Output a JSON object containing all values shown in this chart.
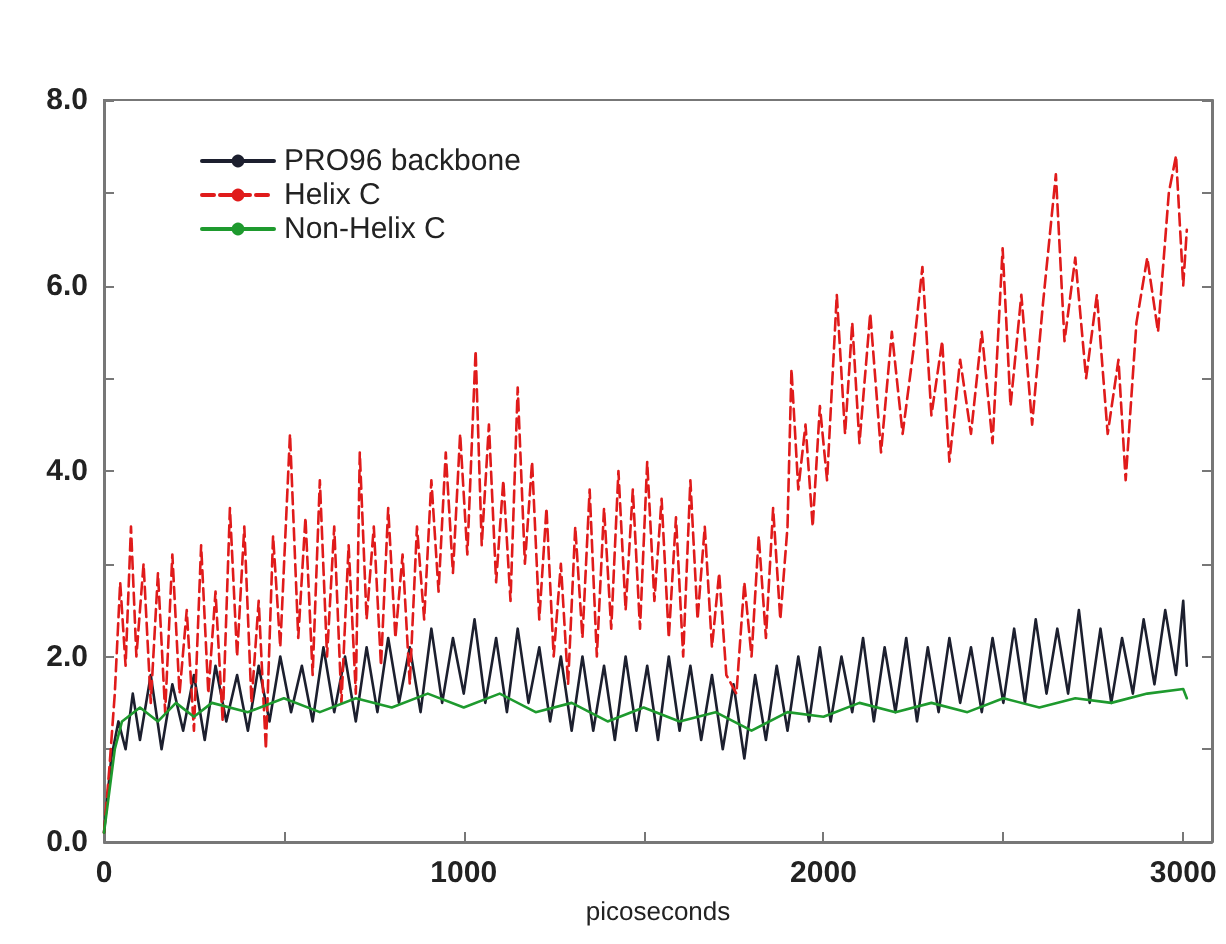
{
  "chart_data": {
    "type": "line",
    "xlabel": "picoseconds",
    "xlim": [
      0,
      3080
    ],
    "ylim": [
      0,
      8
    ],
    "xticks": [
      0,
      {
        "value": 500,
        "label": null
      },
      1000,
      {
        "value": 1500,
        "label": null
      },
      2000,
      {
        "value": 2500,
        "label": null
      },
      3000
    ],
    "yticks": [
      {
        "value": 0,
        "label": "0.0"
      },
      {
        "value": 1,
        "label": null
      },
      {
        "value": 2,
        "label": "2.0"
      },
      {
        "value": 3,
        "label": null
      },
      {
        "value": 4,
        "label": "4.0"
      },
      {
        "value": 5,
        "label": null
      },
      {
        "value": 6,
        "label": "6.0"
      },
      {
        "value": 7,
        "label": null
      },
      {
        "value": 8,
        "label": "8.0"
      }
    ],
    "grid": false,
    "legend": "top left",
    "marker": "none",
    "series": [
      {
        "name": "PRO96 backbone",
        "color": "#1c1f2e",
        "line_style": "solid",
        "x": [
          0,
          20,
          40,
          60,
          80,
          100,
          130,
          160,
          190,
          220,
          250,
          280,
          310,
          340,
          370,
          400,
          430,
          460,
          490,
          520,
          550,
          580,
          610,
          640,
          670,
          700,
          730,
          760,
          790,
          820,
          850,
          880,
          910,
          940,
          970,
          1000,
          1030,
          1060,
          1090,
          1120,
          1150,
          1180,
          1210,
          1240,
          1270,
          1300,
          1330,
          1360,
          1390,
          1420,
          1450,
          1480,
          1510,
          1540,
          1570,
          1600,
          1630,
          1660,
          1690,
          1720,
          1750,
          1780,
          1810,
          1840,
          1870,
          1900,
          1930,
          1960,
          1990,
          2020,
          2050,
          2080,
          2110,
          2140,
          2170,
          2200,
          2230,
          2260,
          2290,
          2320,
          2350,
          2380,
          2410,
          2440,
          2470,
          2500,
          2530,
          2560,
          2590,
          2620,
          2650,
          2680,
          2710,
          2740,
          2770,
          2800,
          2830,
          2860,
          2890,
          2920,
          2950,
          2980,
          3000,
          3010
        ],
        "values": [
          0.1,
          0.9,
          1.3,
          1.0,
          1.6,
          1.1,
          1.8,
          1.0,
          1.7,
          1.2,
          1.8,
          1.1,
          1.9,
          1.3,
          1.8,
          1.2,
          1.9,
          1.3,
          2.0,
          1.4,
          1.9,
          1.3,
          2.1,
          1.4,
          2.0,
          1.3,
          2.1,
          1.4,
          2.2,
          1.5,
          2.1,
          1.4,
          2.3,
          1.5,
          2.2,
          1.6,
          2.4,
          1.5,
          2.2,
          1.4,
          2.3,
          1.5,
          2.1,
          1.3,
          2.0,
          1.2,
          2.0,
          1.2,
          1.9,
          1.1,
          2.0,
          1.2,
          1.9,
          1.1,
          2.0,
          1.2,
          1.9,
          1.1,
          1.8,
          1.0,
          1.7,
          0.9,
          1.8,
          1.1,
          1.9,
          1.2,
          2.0,
          1.3,
          2.1,
          1.3,
          2.0,
          1.4,
          2.2,
          1.3,
          2.1,
          1.4,
          2.2,
          1.3,
          2.1,
          1.4,
          2.2,
          1.5,
          2.1,
          1.4,
          2.2,
          1.5,
          2.3,
          1.5,
          2.4,
          1.6,
          2.3,
          1.6,
          2.5,
          1.5,
          2.3,
          1.5,
          2.2,
          1.6,
          2.4,
          1.7,
          2.5,
          1.8,
          2.6,
          1.9
        ]
      },
      {
        "name": "Helix C",
        "color": "#e01b1b",
        "line_style": "dashed",
        "x": [
          0,
          15,
          30,
          45,
          60,
          75,
          90,
          110,
          130,
          150,
          170,
          190,
          210,
          230,
          250,
          270,
          290,
          310,
          330,
          350,
          370,
          390,
          410,
          430,
          450,
          470,
          490,
          517,
          540,
          560,
          580,
          600,
          620,
          640,
          660,
          680,
          700,
          711,
          730,
          750,
          770,
          790,
          810,
          830,
          850,
          870,
          890,
          910,
          930,
          950,
          970,
          990,
          1010,
          1033,
          1050,
          1070,
          1090,
          1110,
          1130,
          1150,
          1170,
          1190,
          1210,
          1230,
          1250,
          1270,
          1290,
          1310,
          1330,
          1350,
          1370,
          1390,
          1410,
          1430,
          1450,
          1470,
          1490,
          1510,
          1530,
          1550,
          1570,
          1590,
          1610,
          1630,
          1650,
          1670,
          1690,
          1710,
          1730,
          1758,
          1780,
          1800,
          1820,
          1840,
          1860,
          1880,
          1900,
          1911,
          1930,
          1950,
          1970,
          1990,
          2010,
          2037,
          2060,
          2080,
          2100,
          2130,
          2160,
          2190,
          2220,
          2250,
          2275,
          2300,
          2330,
          2350,
          2380,
          2410,
          2440,
          2470,
          2498,
          2520,
          2550,
          2580,
          2610,
          2646,
          2670,
          2700,
          2730,
          2760,
          2790,
          2820,
          2840,
          2870,
          2900,
          2930,
          2960,
          2980,
          3000,
          3010
        ],
        "values": [
          0.1,
          0.8,
          1.6,
          2.8,
          1.9,
          3.4,
          2.0,
          3.0,
          1.5,
          2.9,
          1.4,
          3.1,
          1.6,
          2.5,
          1.2,
          3.2,
          1.6,
          2.7,
          1.3,
          3.6,
          2.0,
          3.4,
          1.5,
          2.6,
          1.0,
          3.3,
          2.1,
          4.4,
          2.2,
          3.5,
          1.8,
          3.9,
          2.0,
          3.4,
          1.5,
          3.2,
          1.6,
          4.2,
          2.4,
          3.4,
          1.9,
          3.6,
          2.2,
          3.1,
          1.7,
          3.4,
          2.4,
          3.9,
          2.7,
          4.2,
          2.9,
          4.4,
          3.1,
          5.3,
          3.2,
          4.5,
          2.8,
          3.9,
          2.6,
          4.9,
          3.0,
          4.1,
          2.4,
          3.6,
          2.0,
          3.0,
          1.7,
          3.4,
          2.2,
          3.8,
          2.0,
          3.6,
          2.3,
          4.0,
          2.5,
          3.8,
          2.3,
          4.1,
          2.6,
          3.7,
          2.2,
          3.5,
          2.0,
          3.9,
          2.4,
          3.4,
          2.1,
          2.9,
          1.8,
          1.6,
          2.8,
          2.0,
          3.3,
          2.2,
          3.6,
          2.4,
          3.4,
          5.1,
          3.8,
          4.5,
          3.4,
          4.7,
          3.9,
          5.9,
          4.4,
          5.6,
          4.3,
          5.7,
          4.2,
          5.5,
          4.4,
          5.3,
          6.2,
          4.6,
          5.4,
          4.1,
          5.2,
          4.4,
          5.5,
          4.3,
          6.4,
          4.7,
          5.9,
          4.5,
          5.8,
          7.2,
          5.4,
          6.3,
          5.0,
          5.9,
          4.4,
          5.2,
          3.9,
          5.6,
          6.3,
          5.5,
          7.0,
          7.4,
          6.0,
          6.6
        ]
      },
      {
        "name": "Non-Helix C",
        "color": "#1e9a2e",
        "line_style": "solid",
        "x": [
          0,
          30,
          50,
          100,
          150,
          200,
          250,
          300,
          400,
          500,
          600,
          700,
          800,
          900,
          1000,
          1100,
          1200,
          1300,
          1400,
          1500,
          1600,
          1700,
          1800,
          1900,
          2000,
          2100,
          2200,
          2300,
          2400,
          2500,
          2600,
          2700,
          2800,
          2900,
          3000,
          3010
        ],
        "values": [
          0.1,
          1.0,
          1.3,
          1.45,
          1.3,
          1.5,
          1.35,
          1.5,
          1.4,
          1.55,
          1.4,
          1.55,
          1.45,
          1.6,
          1.45,
          1.6,
          1.4,
          1.5,
          1.3,
          1.45,
          1.3,
          1.4,
          1.2,
          1.4,
          1.35,
          1.5,
          1.4,
          1.5,
          1.4,
          1.55,
          1.45,
          1.55,
          1.5,
          1.6,
          1.65,
          1.55
        ]
      }
    ]
  }
}
